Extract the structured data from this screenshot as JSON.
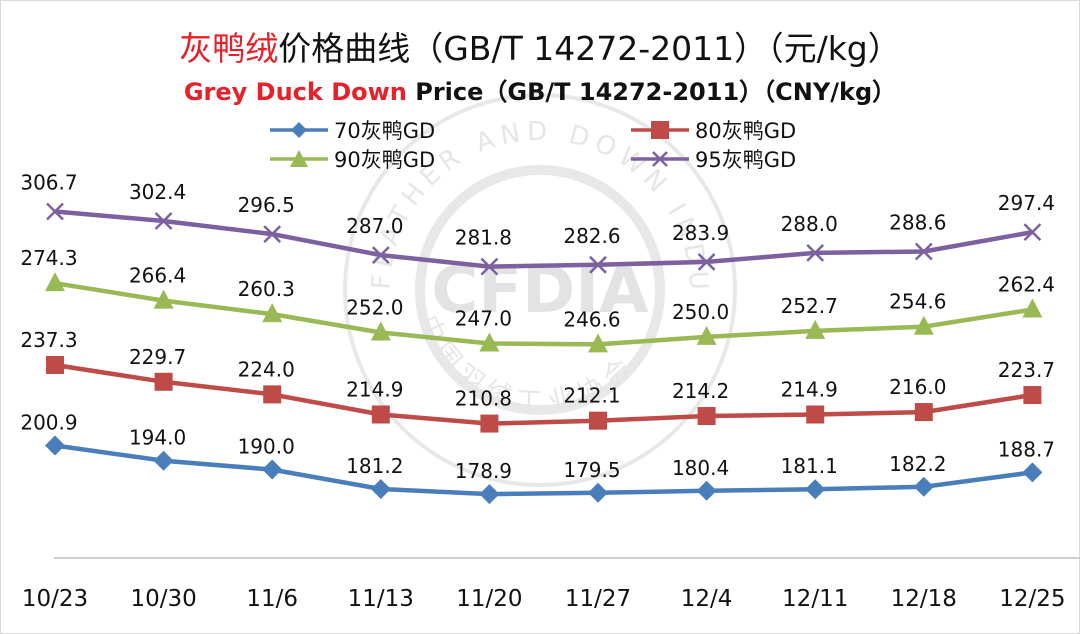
{
  "header": {
    "title_cn_red": "灰鸭绒",
    "title_cn_rest": "价格曲线（GB/T 14272-2011）（元/kg）",
    "title_en_red": "Grey Duck Down",
    "title_en_rest": " Price（GB/T 14272-2011）（CNY/kg）"
  },
  "colors": {
    "70": "#4a7ebb",
    "80": "#be4b48",
    "90": "#98b954",
    "95": "#7d60a0",
    "title_red": "#e8202a"
  },
  "watermark": {
    "text_arc_en": "FEATHER AND DOWN INDUSTRIAL",
    "text_arc_cn": "中国羽绒工业协会",
    "logo_text": "CFDIA"
  },
  "chart_data": {
    "type": "line",
    "title": "灰鸭绒价格曲线（GB/T 14272-2011）（元/kg）",
    "subtitle": "Grey Duck Down Price（GB/T 14272-2011）（CNY/kg）",
    "categories": [
      "10/23",
      "10/30",
      "11/6",
      "11/13",
      "11/20",
      "11/27",
      "12/4",
      "12/11",
      "12/18",
      "12/25"
    ],
    "ylim": [
      150,
      330
    ],
    "grid": false,
    "legend_position": "top",
    "series": [
      {
        "key": "70",
        "name": "70灰鸭GD",
        "marker": "diamond",
        "color": "#4a7ebb",
        "values": [
          200.9,
          194.0,
          190.0,
          181.2,
          178.9,
          179.5,
          180.4,
          181.1,
          182.2,
          188.7
        ],
        "labels": [
          "200.9",
          "194.0",
          "190.0",
          "181.2",
          "178.9",
          "179.5",
          "180.4",
          "181.1",
          "182.2",
          "188.7"
        ]
      },
      {
        "key": "80",
        "name": "80灰鸭GD",
        "marker": "square",
        "color": "#be4b48",
        "values": [
          237.3,
          229.7,
          224.0,
          214.9,
          210.8,
          212.1,
          214.2,
          214.9,
          216.0,
          223.7
        ],
        "labels": [
          "237.3",
          "229.7",
          "224.0",
          "214.9",
          "210.8",
          "212.1",
          "214.2",
          "214.9",
          "216.0",
          "223.7"
        ]
      },
      {
        "key": "90",
        "name": "90灰鸭GD",
        "marker": "triangle",
        "color": "#98b954",
        "values": [
          274.3,
          266.4,
          260.3,
          252.0,
          247.0,
          246.6,
          250.0,
          252.7,
          254.6,
          262.4
        ],
        "labels": [
          "274.3",
          "266.4",
          "260.3",
          "252.0",
          "247.0",
          "246.6",
          "250.0",
          "252.7",
          "254.6",
          "262.4"
        ]
      },
      {
        "key": "95",
        "name": "95灰鸭GD",
        "marker": "cross",
        "color": "#7d60a0",
        "values": [
          306.7,
          302.4,
          296.5,
          287.0,
          281.8,
          282.6,
          283.9,
          288.0,
          288.6,
          297.4
        ],
        "labels": [
          "306.7",
          "302.4",
          "296.5",
          "287.0",
          "281.8",
          "282.6",
          "283.9",
          "288.0",
          "288.6",
          "297.4"
        ]
      }
    ]
  }
}
